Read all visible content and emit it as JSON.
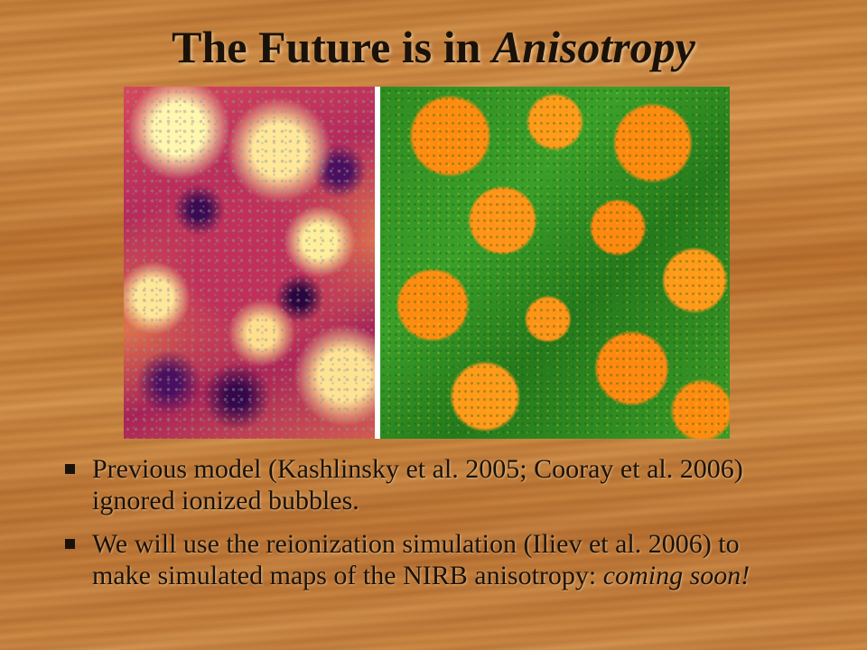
{
  "slide": {
    "title_main": "The Future is in ",
    "title_emph": "Anisotropy"
  },
  "bullets": [
    {
      "text": "Previous model (Kashlinsky et al. 2005; Cooray et al. 2006) ignored ionized bubbles."
    },
    {
      "text": "We will use the reionization simulation (Iliev et al. 2006) to make simulated maps of the NIRB anisotropy: ",
      "emph": "coming soon!"
    }
  ],
  "colors": {
    "text": "#1a1208",
    "map_left_primary": "#c0305a",
    "map_right_ionized": "#ff8c10",
    "map_right_neutral": "#2e8c22"
  }
}
